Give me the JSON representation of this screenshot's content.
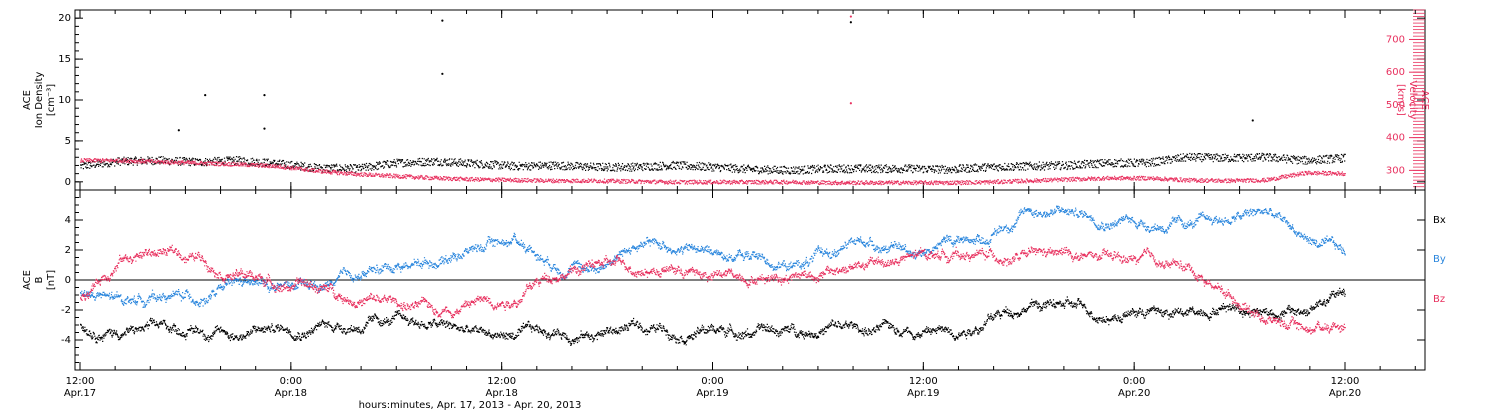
{
  "chart_data": [
    {
      "type": "scatter",
      "panel": "top",
      "ylabel_left": [
        "ACE",
        "Ion Density",
        "[cm⁻³]"
      ],
      "ylabel_right": [
        "ACE",
        "Velocity",
        "[km/s]"
      ],
      "ylim_left": [
        -1,
        21
      ],
      "ylim_right": [
        240,
        790
      ],
      "yticks_left": [
        "0",
        "5",
        "10",
        "15",
        "20"
      ],
      "yticks_right": [
        "300",
        "400",
        "500",
        "600",
        "700"
      ],
      "colors": {
        "density": "#000000",
        "velocity": "#e8315f"
      },
      "series": [
        {
          "key": "density",
          "x": [
            0,
            3,
            6,
            9,
            12,
            15,
            18,
            21,
            24,
            27,
            30,
            33,
            36,
            39,
            42,
            45,
            48,
            51,
            54,
            57,
            60,
            63,
            66,
            69,
            72,
            75,
            78,
            81,
            84,
            87,
            90,
            93,
            96
          ],
          "values": [
            1.9,
            2.5,
            2.6,
            2.4,
            2.6,
            2.2,
            1.7,
            1.6,
            2.3,
            2.5,
            2.2,
            1.9,
            2.0,
            1.8,
            1.8,
            2.0,
            1.8,
            1.5,
            1.4,
            1.6,
            1.6,
            1.6,
            1.5,
            1.8,
            1.9,
            2.0,
            2.3,
            2.3,
            3.0,
            2.9,
            3.0,
            2.6,
            2.9
          ]
        },
        {
          "key": "velocity",
          "x": [
            0,
            3,
            6,
            9,
            12,
            15,
            18,
            21,
            24,
            27,
            30,
            33,
            36,
            39,
            42,
            45,
            48,
            51,
            54,
            57,
            60,
            63,
            66,
            69,
            72,
            75,
            78,
            81,
            84,
            87,
            90,
            93,
            96
          ],
          "values": [
            330,
            330,
            326,
            322,
            318,
            312,
            298,
            288,
            282,
            276,
            272,
            270,
            268,
            268,
            266,
            264,
            264,
            264,
            264,
            262,
            262,
            262,
            262,
            264,
            268,
            272,
            276,
            276,
            270,
            268,
            270,
            292,
            290
          ]
        }
      ],
      "outliers": [
        {
          "key": "density",
          "x": 27.5,
          "y": 19.7
        },
        {
          "key": "density",
          "x": 27.5,
          "y": 13.2
        },
        {
          "key": "density",
          "x": 9.5,
          "y": 10.6
        },
        {
          "key": "density",
          "x": 14.0,
          "y": 10.6
        },
        {
          "key": "density",
          "x": 14.0,
          "y": 6.5
        },
        {
          "key": "density",
          "x": 7.5,
          "y": 6.3
        },
        {
          "key": "density",
          "x": 58.5,
          "y": 19.5
        },
        {
          "key": "velocity",
          "x": 58.5,
          "y": 770
        },
        {
          "key": "velocity",
          "x": 58.5,
          "y": 505
        },
        {
          "key": "density",
          "x": 89.0,
          "y": 7.5
        }
      ]
    },
    {
      "type": "scatter",
      "panel": "bottom",
      "ylabel_left": [
        "ACE",
        "B",
        "[nT]"
      ],
      "ylim": [
        -6,
        6
      ],
      "yticks": [
        "-4",
        "-2",
        "0",
        "2",
        "4"
      ],
      "legend": [
        "Bx",
        "By",
        "Bz"
      ],
      "colors": {
        "bx": "#000000",
        "by": "#2a86dd",
        "bz": "#e8315f"
      },
      "series": [
        {
          "key": "bx",
          "name": "Bx",
          "x": [
            0,
            3,
            6,
            9,
            12,
            15,
            18,
            21,
            24,
            27,
            30,
            33,
            36,
            39,
            42,
            45,
            48,
            51,
            54,
            57,
            60,
            63,
            66,
            69,
            72,
            75,
            78,
            81,
            84,
            87,
            90,
            93,
            96
          ],
          "values": [
            -3.0,
            -3.4,
            -3.3,
            -3.3,
            -3.6,
            -3.2,
            -3.0,
            -3.0,
            -2.8,
            -3.0,
            -3.6,
            -3.7,
            -3.5,
            -3.6,
            -3.1,
            -3.3,
            -3.3,
            -3.4,
            -3.4,
            -3.1,
            -3.4,
            -3.2,
            -3.4,
            -2.6,
            -1.5,
            -1.8,
            -2.3,
            -2.0,
            -2.4,
            -1.5,
            -2.0,
            -2.2,
            -0.8
          ]
        },
        {
          "key": "by",
          "name": "By",
          "x": [
            0,
            3,
            6,
            9,
            12,
            15,
            18,
            21,
            24,
            27,
            30,
            33,
            36,
            39,
            42,
            45,
            48,
            51,
            54,
            57,
            60,
            63,
            66,
            69,
            72,
            75,
            78,
            81,
            84,
            87,
            90,
            93,
            96
          ],
          "values": [
            -0.8,
            -1.5,
            -1.0,
            -1.2,
            -0.4,
            -0.5,
            -0.7,
            0.2,
            1.0,
            1.4,
            2.2,
            2.8,
            1.2,
            0.8,
            2.2,
            2.3,
            1.8,
            1.6,
            0.9,
            1.8,
            2.6,
            1.8,
            2.6,
            3.0,
            4.7,
            4.5,
            4.2,
            3.8,
            3.6,
            4.0,
            4.5,
            2.8,
            1.6
          ]
        },
        {
          "key": "bz",
          "name": "Bz",
          "x": [
            0,
            3,
            6,
            9,
            12,
            15,
            18,
            21,
            24,
            27,
            30,
            33,
            36,
            39,
            42,
            45,
            48,
            51,
            54,
            57,
            60,
            63,
            66,
            69,
            72,
            75,
            78,
            81,
            84,
            87,
            90,
            93,
            96
          ],
          "values": [
            -1.3,
            1.5,
            1.9,
            1.5,
            0.5,
            -0.2,
            -0.5,
            -1.2,
            -1.6,
            -2.0,
            -1.4,
            -1.1,
            0.5,
            1.0,
            0.9,
            0.8,
            0.2,
            0.3,
            0.5,
            0.5,
            1.0,
            1.4,
            1.8,
            1.6,
            1.5,
            1.6,
            1.3,
            1.2,
            0.8,
            -0.8,
            -2.5,
            -3.2,
            -2.8
          ]
        }
      ]
    }
  ],
  "x_axis": {
    "range_hours": [
      0,
      96
    ],
    "ticks": [
      {
        "time": "12:00",
        "date": "Apr.17"
      },
      {
        "time": "0:00",
        "date": "Apr.18"
      },
      {
        "time": "12:00",
        "date": "Apr.18"
      },
      {
        "time": "0:00",
        "date": "Apr.19"
      },
      {
        "time": "12:00",
        "date": "Apr.19"
      },
      {
        "time": "0:00",
        "date": "Apr.20"
      },
      {
        "time": "12:00",
        "date": "Apr.20"
      }
    ],
    "label": "hours:minutes, Apr. 17, 2013 - Apr. 20, 2013"
  }
}
